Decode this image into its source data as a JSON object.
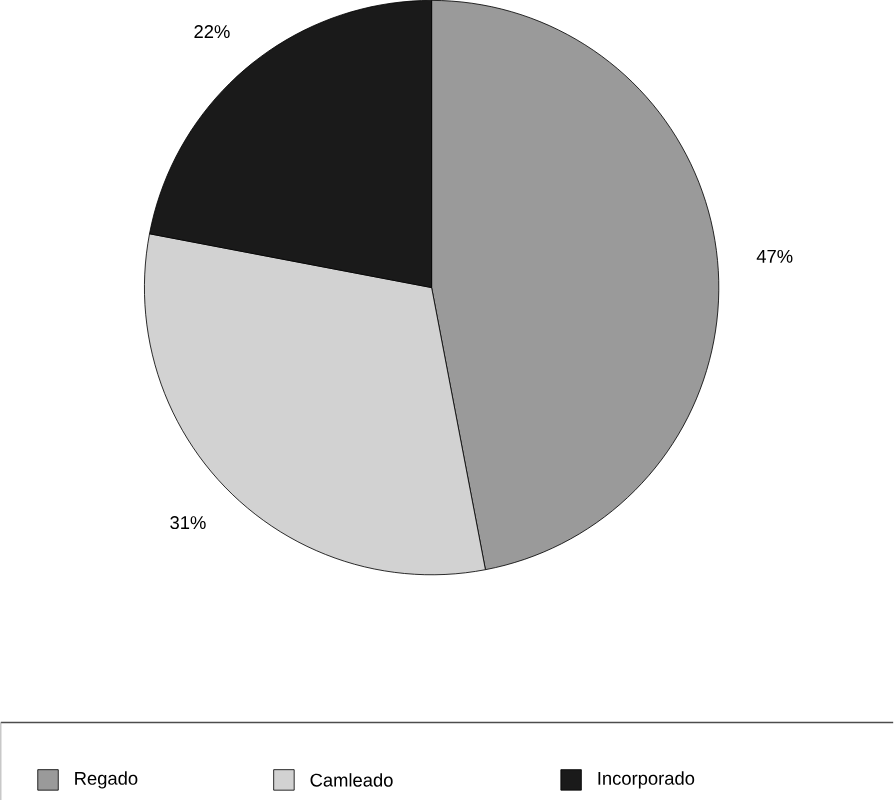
{
  "chart_data": {
    "type": "pie",
    "categories": [
      "Regado",
      "Camleado",
      "Incorporado"
    ],
    "values": [
      47,
      31,
      22
    ],
    "colors": [
      "#9a9a9a",
      "#d2d2d2",
      "#1a1a1a"
    ],
    "value_labels": [
      "47%",
      "31%",
      "22%"
    ],
    "legend": "bottom"
  }
}
